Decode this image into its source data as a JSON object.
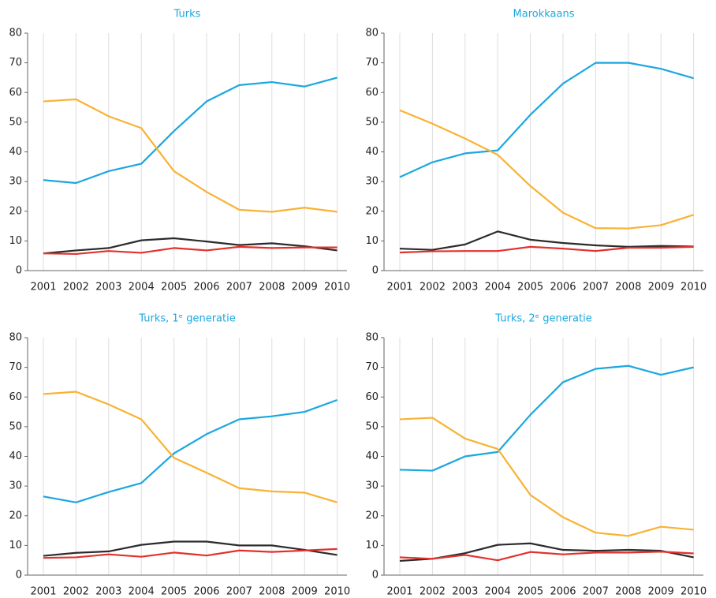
{
  "chart_data": [
    {
      "type": "line",
      "title": "Turks",
      "categories": [
        "2001",
        "2002",
        "2003",
        "2004",
        "2005",
        "2006",
        "2007",
        "2008",
        "2009",
        "2010"
      ],
      "ylim": [
        0,
        80
      ],
      "yticks": [
        0,
        10,
        20,
        30,
        40,
        50,
        60,
        70,
        80
      ],
      "series": [
        {
          "color": "#1ba7e0",
          "values": [
            30.5,
            29.5,
            33.5,
            36,
            47,
            57,
            62.5,
            63.5,
            62,
            65
          ]
        },
        {
          "color": "#f9b233",
          "values": [
            57,
            57.7,
            52,
            48,
            33.5,
            26.5,
            20.5,
            19.8,
            21.2,
            19.8
          ]
        },
        {
          "color": "#2b2b2b",
          "values": [
            5.8,
            6.8,
            7.6,
            10.2,
            10.9,
            9.8,
            8.6,
            9.2,
            8.2,
            6.8
          ]
        },
        {
          "color": "#e2312d",
          "values": [
            5.8,
            5.6,
            6.6,
            6,
            7.6,
            6.8,
            8,
            7.6,
            7.8,
            7.8
          ]
        }
      ]
    },
    {
      "type": "line",
      "title": "Marokkaans",
      "categories": [
        "2001",
        "2002",
        "2003",
        "2004",
        "2005",
        "2006",
        "2007",
        "2008",
        "2009",
        "2010"
      ],
      "ylim": [
        0,
        80
      ],
      "yticks": [
        0,
        10,
        20,
        30,
        40,
        50,
        60,
        70,
        80
      ],
      "series": [
        {
          "color": "#1ba7e0",
          "values": [
            31.5,
            36.5,
            39.5,
            40.5,
            52.5,
            63,
            70,
            70,
            68,
            64.8
          ]
        },
        {
          "color": "#f9b233",
          "values": [
            54,
            49.5,
            44.5,
            39,
            28.5,
            19.5,
            14.3,
            14.2,
            15.3,
            18.8
          ]
        },
        {
          "color": "#2b2b2b",
          "values": [
            7.4,
            7,
            8.8,
            13.2,
            10.4,
            9.3,
            8.5,
            8,
            8.3,
            8.1
          ]
        },
        {
          "color": "#e2312d",
          "values": [
            6.1,
            6.5,
            6.6,
            6.6,
            8,
            7.4,
            6.6,
            7.7,
            7.7,
            8
          ]
        }
      ]
    },
    {
      "type": "line",
      "title": "Turks, 1ᵉ generatie",
      "categories": [
        "2001",
        "2002",
        "2003",
        "2004",
        "2005",
        "2006",
        "2007",
        "2008",
        "2009",
        "2010"
      ],
      "ylim": [
        0,
        80
      ],
      "yticks": [
        0,
        10,
        20,
        30,
        40,
        50,
        60,
        70,
        80
      ],
      "series": [
        {
          "color": "#1ba7e0",
          "values": [
            26.5,
            24.5,
            28,
            31,
            41,
            47.5,
            52.5,
            53.5,
            55,
            59
          ]
        },
        {
          "color": "#f9b233",
          "values": [
            61,
            61.8,
            57.5,
            52.5,
            39.5,
            34.5,
            29.3,
            28.2,
            27.8,
            24.5
          ]
        },
        {
          "color": "#2b2b2b",
          "values": [
            6.5,
            7.5,
            8,
            10.2,
            11.3,
            11.3,
            10,
            10,
            8.5,
            6.8
          ]
        },
        {
          "color": "#e2312d",
          "values": [
            5.8,
            6,
            7,
            6.2,
            7.6,
            6.6,
            8.3,
            7.8,
            8.3,
            8.8
          ]
        }
      ]
    },
    {
      "type": "line",
      "title": "Turks, 2ᵉ generatie",
      "categories": [
        "2001",
        "2002",
        "2003",
        "2004",
        "2005",
        "2006",
        "2007",
        "2008",
        "2009",
        "2010"
      ],
      "ylim": [
        0,
        80
      ],
      "yticks": [
        0,
        10,
        20,
        30,
        40,
        50,
        60,
        70,
        80
      ],
      "series": [
        {
          "color": "#1ba7e0",
          "values": [
            35.5,
            35.2,
            40,
            41.5,
            54,
            65,
            69.5,
            70.5,
            67.5,
            70
          ]
        },
        {
          "color": "#f9b233",
          "values": [
            52.5,
            53,
            46,
            42.5,
            27,
            19.5,
            14.3,
            13.2,
            16.3,
            15.3
          ]
        },
        {
          "color": "#2b2b2b",
          "values": [
            4.8,
            5.5,
            7.4,
            10.2,
            10.7,
            8.5,
            8.2,
            8.5,
            8.2,
            6
          ]
        },
        {
          "color": "#e2312d",
          "values": [
            6,
            5.5,
            6.8,
            5,
            7.8,
            7,
            7.6,
            7.6,
            7.9,
            7.3
          ]
        }
      ]
    }
  ]
}
